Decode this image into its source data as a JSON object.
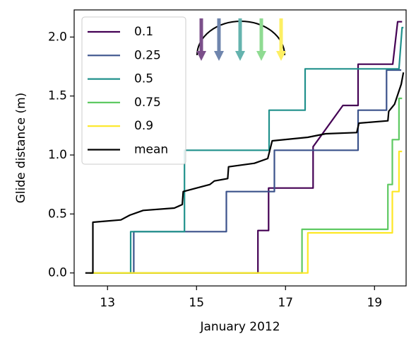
{
  "chart_data": {
    "type": "line",
    "xlabel": "January 2012",
    "ylabel": "Glide distance (m)",
    "xlim": [
      12.25,
      19.71
    ],
    "ylim": [
      -0.11,
      2.23
    ],
    "xticks": [
      13,
      15,
      17,
      19
    ],
    "yticks": [
      {
        "value": 0,
        "label": "0.0"
      },
      0.5,
      {
        "value": 1,
        "label": "1.0"
      },
      1.5,
      {
        "value": 2,
        "label": "2.0"
      }
    ],
    "legend": "upper left",
    "series": [
      {
        "name": "0.1",
        "color": "#440154",
        "x": [
          12.6,
          16.38,
          16.38,
          16.62,
          16.62,
          17.62,
          17.62,
          18.29,
          18.63,
          18.63,
          19.41,
          19.52,
          19.62
        ],
        "values": [
          0,
          0,
          0.36,
          0.36,
          0.72,
          0.72,
          1.07,
          1.42,
          1.42,
          1.77,
          1.77,
          2.13,
          2.13
        ]
      },
      {
        "name": "0.25",
        "color": "#3b528b",
        "x": [
          12.6,
          13.59,
          13.59,
          15.67,
          15.67,
          16.75,
          16.75,
          18.63,
          18.63,
          19.27,
          19.27,
          19.6
        ],
        "values": [
          0,
          0,
          0.35,
          0.35,
          0.69,
          0.69,
          1.04,
          1.04,
          1.38,
          1.38,
          1.72,
          1.72
        ]
      },
      {
        "name": "0.5",
        "color": "#21918c",
        "x": [
          12.6,
          13.52,
          13.52,
          14.73,
          14.73,
          16.63,
          16.63,
          17.44,
          17.44,
          19.55,
          19.62,
          19.65
        ],
        "values": [
          0,
          0,
          0.35,
          0.35,
          1.04,
          1.04,
          1.38,
          1.38,
          1.73,
          1.73,
          2.08,
          2.08
        ]
      },
      {
        "name": "0.75",
        "color": "#5ec962",
        "x": [
          12.6,
          17.37,
          17.37,
          19.3,
          19.3,
          19.4,
          19.4,
          19.55,
          19.55,
          19.62
        ],
        "values": [
          0,
          0,
          0.37,
          0.37,
          0.75,
          0.75,
          1.13,
          1.13,
          1.48,
          1.48
        ]
      },
      {
        "name": "0.9",
        "color": "#fde725",
        "x": [
          12.6,
          17.5,
          17.5,
          19.4,
          19.4,
          19.55,
          19.55,
          19.62
        ],
        "values": [
          0,
          0,
          0.34,
          0.34,
          0.69,
          0.69,
          1.03,
          1.03
        ]
      },
      {
        "name": "mean",
        "color": "#000000",
        "x": [
          12.5,
          12.67,
          12.67,
          13.3,
          13.5,
          13.8,
          14.5,
          14.68,
          14.7,
          15.3,
          15.4,
          15.7,
          15.72,
          16.3,
          16.6,
          16.7,
          17.5,
          17.9,
          18.6,
          18.65,
          19.3,
          19.32,
          19.45,
          19.6,
          19.65
        ],
        "values": [
          0,
          0,
          0.43,
          0.45,
          0.49,
          0.53,
          0.55,
          0.58,
          0.69,
          0.75,
          0.78,
          0.8,
          0.9,
          0.93,
          0.97,
          1.12,
          1.15,
          1.18,
          1.19,
          1.27,
          1.29,
          1.37,
          1.43,
          1.6,
          1.7
        ]
      }
    ]
  }
}
